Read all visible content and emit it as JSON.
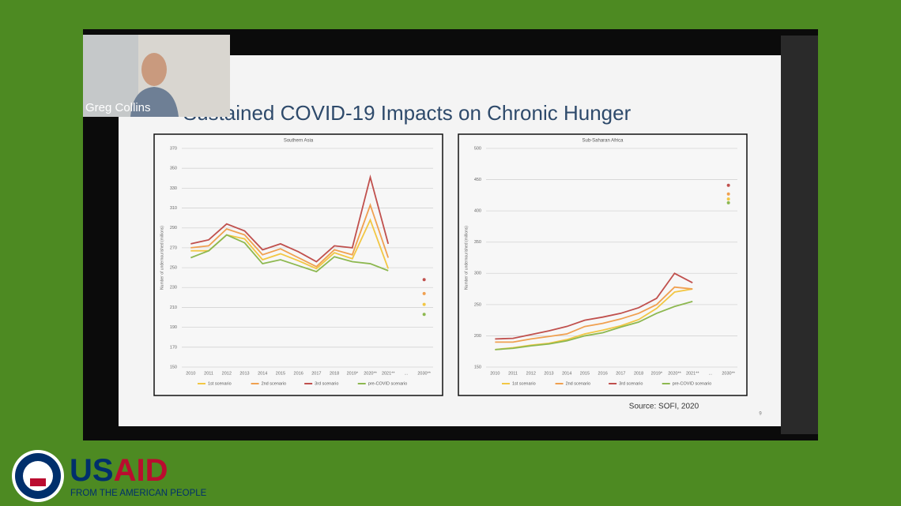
{
  "overlay": {
    "participant_name": "Greg Collins"
  },
  "slide": {
    "title": "Sustained COVID-19 Impacts on Chronic Hunger",
    "source": "Source: SOFI, 2020",
    "page_number": "9"
  },
  "logo": {
    "wordmark": [
      "US",
      "AID"
    ],
    "tagline": "FROM THE AMERICAN PEOPLE"
  },
  "chart_data": [
    {
      "type": "line",
      "title": "Southern Asia",
      "y_label": "Number of undernourished (millions)",
      "categories": [
        "2010",
        "2011",
        "2012",
        "2013",
        "2014",
        "2015",
        "2016",
        "2017",
        "2018",
        "2019*",
        "2020**",
        "2021**",
        "...",
        "2030**"
      ],
      "ylim": [
        150,
        370
      ],
      "yticks": [
        150,
        170,
        190,
        210,
        230,
        250,
        270,
        290,
        310,
        330,
        350,
        370
      ],
      "grid": true,
      "series": [
        {
          "name": "1st scenario",
          "color": "#f2c744",
          "values": [
            267,
            267,
            283,
            279,
            258,
            264,
            257,
            249,
            265,
            259,
            298,
            249,
            null,
            213
          ]
        },
        {
          "name": "2nd scenario",
          "color": "#f0a050",
          "values": [
            270,
            272,
            289,
            283,
            263,
            269,
            260,
            251,
            268,
            263,
            313,
            260,
            null,
            224
          ]
        },
        {
          "name": "3rd scenario",
          "color": "#c0504d",
          "values": [
            274,
            278,
            294,
            287,
            268,
            274,
            266,
            256,
            272,
            270,
            341,
            274,
            null,
            238
          ]
        },
        {
          "name": "pre-COVID scenario",
          "color": "#8db850",
          "values": [
            260,
            267,
            283,
            275,
            254,
            258,
            252,
            246,
            261,
            256,
            254,
            247,
            null,
            203
          ]
        }
      ]
    },
    {
      "type": "line",
      "title": "Sub-Saharan Africa",
      "y_label": "Number of undernourished (millions)",
      "categories": [
        "2010",
        "2011",
        "2012",
        "2013",
        "2014",
        "2015",
        "2016",
        "2017",
        "2018",
        "2019*",
        "2020**",
        "2021**",
        "...",
        "2030**"
      ],
      "ylim": [
        150,
        500
      ],
      "yticks": [
        150,
        200,
        250,
        300,
        350,
        400,
        450,
        500
      ],
      "grid": true,
      "series": [
        {
          "name": "1st scenario",
          "color": "#f2c744",
          "values": [
            178,
            181,
            185,
            188,
            194,
            203,
            209,
            216,
            226,
            244,
            270,
            275,
            null,
            419
          ]
        },
        {
          "name": "2nd scenario",
          "color": "#f0a050",
          "values": [
            190,
            190,
            195,
            199,
            203,
            215,
            220,
            227,
            236,
            250,
            278,
            275,
            null,
            427
          ]
        },
        {
          "name": "3rd scenario",
          "color": "#c0504d",
          "values": [
            195,
            196,
            202,
            208,
            215,
            225,
            230,
            236,
            245,
            260,
            300,
            285,
            null,
            441
          ]
        },
        {
          "name": "pre-COVID scenario",
          "color": "#8db850",
          "values": [
            178,
            180,
            184,
            187,
            192,
            200,
            205,
            214,
            222,
            236,
            247,
            255,
            null,
            413
          ]
        }
      ]
    }
  ]
}
